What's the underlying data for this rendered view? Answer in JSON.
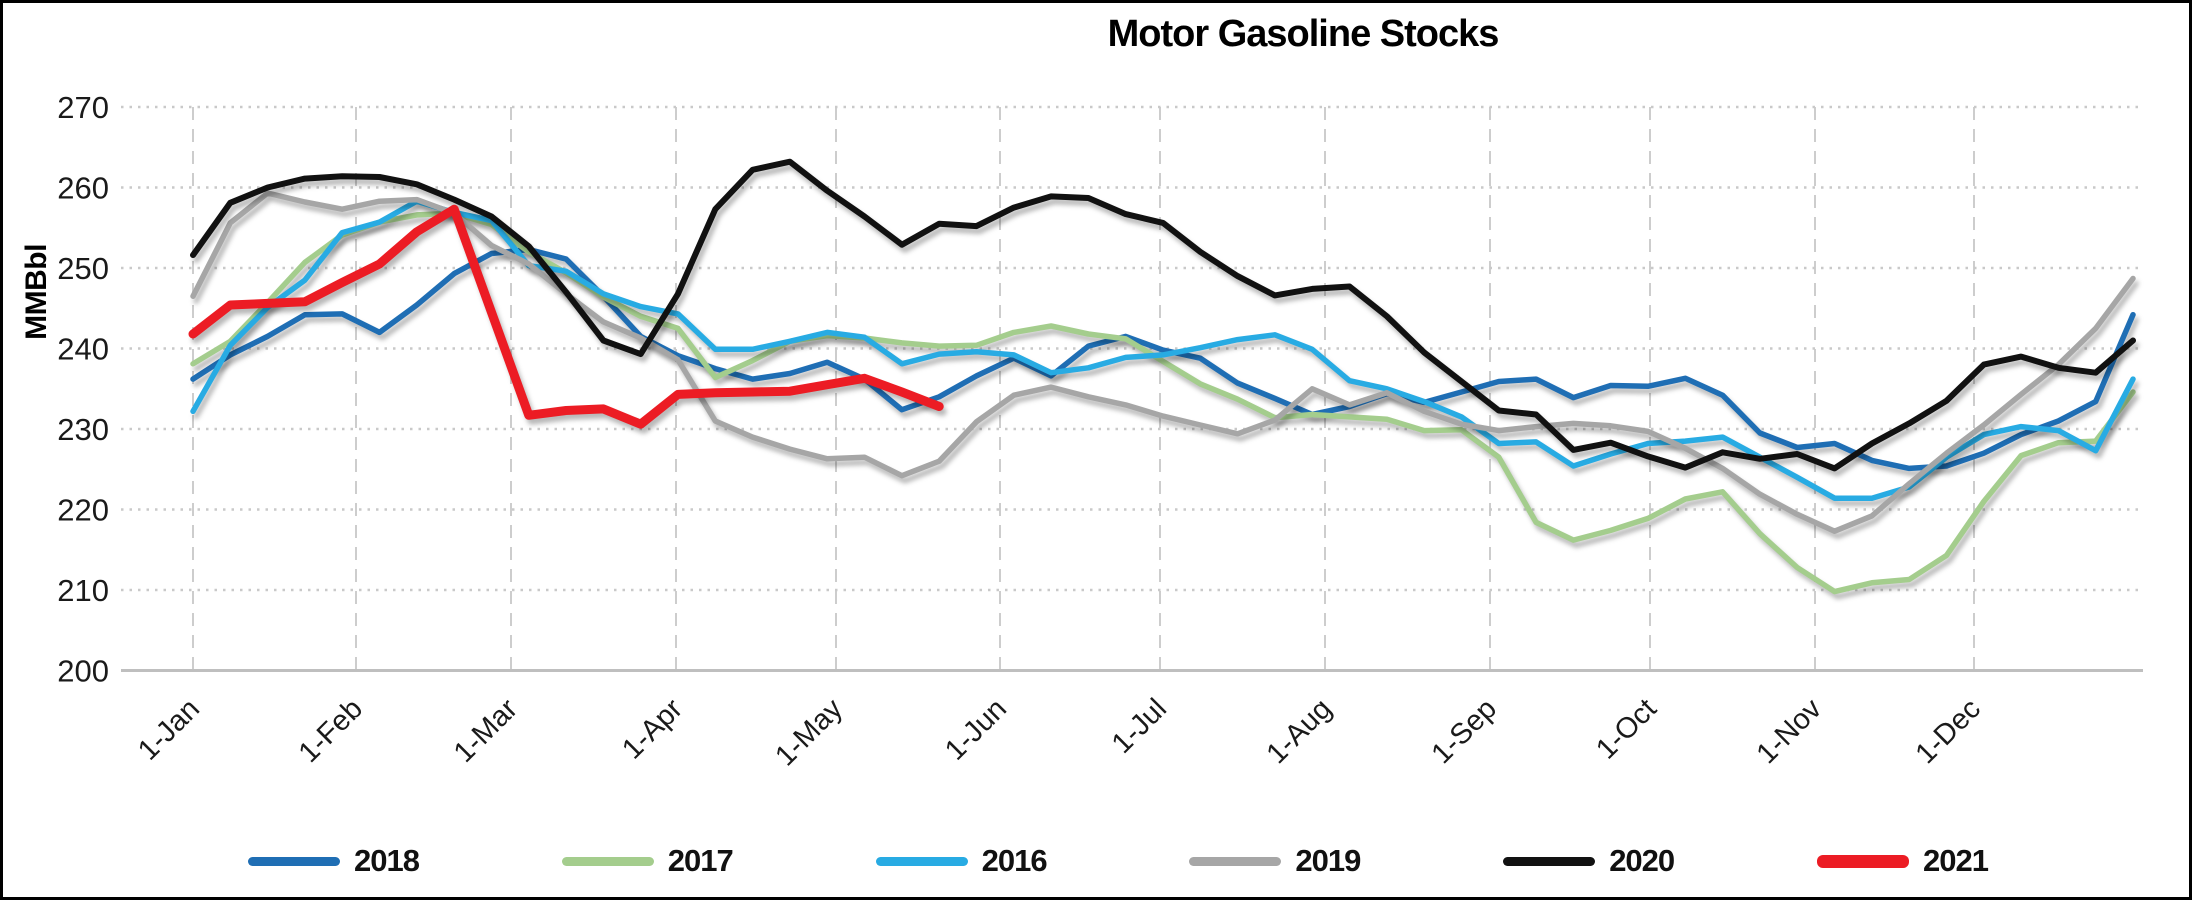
{
  "title": "Motor Gasoline Stocks",
  "y_axis": {
    "label": "MMBbl",
    "ticks": [
      270,
      260,
      250,
      240,
      230,
      220,
      210,
      200
    ]
  },
  "x_axis": {
    "tick_labels": [
      "1-Jan",
      "1-Feb",
      "1-Mar",
      "1-Apr",
      "1-May",
      "1-Jun",
      "1-Jul",
      "1-Aug",
      "1-Sep",
      "1-Oct",
      "1-Nov",
      "1-Dec"
    ]
  },
  "chart_data": {
    "type": "line",
    "title": "Motor Gasoline Stocks",
    "xlabel": "",
    "ylabel": "MMBbl",
    "ylim": [
      200,
      270
    ],
    "grid": true,
    "legend_position": "bottom",
    "x_tick_labels": [
      "1-Jan",
      "1-Feb",
      "1-Mar",
      "1-Apr",
      "1-May",
      "1-Jun",
      "1-Jul",
      "1-Aug",
      "1-Sep",
      "1-Oct",
      "1-Nov",
      "1-Dec"
    ],
    "x_note": "weekly data points, Jan 1 through Dec 31",
    "series": [
      {
        "name": "2018",
        "color": "#1F6EB4",
        "width": 5.5,
        "values": [
          236.2,
          239.2,
          241.5,
          244.2,
          244.3,
          242.0,
          245.4,
          249.3,
          251.8,
          252.3,
          251.1,
          246.5,
          241.5,
          239.1,
          237.5,
          236.2,
          236.9,
          238.3,
          236.2,
          232.4,
          234.0,
          236.6,
          238.8,
          236.6,
          240.3,
          241.5,
          239.8,
          238.8,
          235.7,
          233.8,
          231.8,
          232.8,
          234.4,
          233.3,
          234.6,
          235.9,
          236.2,
          233.9,
          235.4,
          235.3,
          236.3,
          234.2,
          229.5,
          227.7,
          228.2,
          226.1,
          225.1,
          225.4,
          227.0,
          229.3,
          231.0,
          233.4,
          244.2
        ]
      },
      {
        "name": "2017",
        "color": "#A4CD8D",
        "width": 5.5,
        "values": [
          238.1,
          240.9,
          245.7,
          250.7,
          254.1,
          255.7,
          256.6,
          256.8,
          255.4,
          252.0,
          249.4,
          246.4,
          244.0,
          242.5,
          236.4,
          238.5,
          240.9,
          241.6,
          241.3,
          240.7,
          240.3,
          240.4,
          242.0,
          242.8,
          241.8,
          241.2,
          238.4,
          235.6,
          233.7,
          231.4,
          231.8,
          231.5,
          231.2,
          229.8,
          229.9,
          226.5,
          218.4,
          216.2,
          217.4,
          218.9,
          221.3,
          222.2,
          217.0,
          212.8,
          209.8,
          210.9,
          211.3,
          214.3,
          221.0,
          226.7,
          228.3,
          228.5,
          234.6
        ]
      },
      {
        "name": "2016",
        "color": "#28ABE3",
        "width": 5.5,
        "values": [
          232.2,
          240.4,
          245.1,
          248.5,
          254.4,
          255.7,
          258.3,
          256.9,
          255.9,
          250.3,
          249.6,
          246.8,
          245.2,
          244.3,
          239.9,
          239.9,
          240.9,
          242.0,
          241.4,
          238.1,
          239.3,
          239.6,
          239.2,
          237.0,
          237.6,
          238.9,
          239.2,
          240.1,
          241.1,
          241.7,
          239.9,
          236.0,
          235.0,
          233.4,
          231.5,
          228.2,
          228.4,
          225.4,
          226.9,
          228.2,
          228.5,
          229.0,
          226.5,
          224.0,
          221.4,
          221.4,
          222.8,
          226.5,
          229.3,
          230.3,
          229.8,
          227.3,
          236.2
        ]
      },
      {
        "name": "2019",
        "color": "#A6A6A6",
        "width": 5.5,
        "values": [
          246.5,
          255.6,
          259.3,
          258.2,
          257.3,
          258.3,
          258.5,
          256.8,
          252.8,
          250.5,
          246.8,
          243.3,
          241.3,
          238.6,
          231.0,
          229.0,
          227.5,
          226.3,
          226.5,
          224.2,
          226.0,
          230.9,
          234.2,
          235.2,
          234.0,
          233.0,
          231.6,
          230.5,
          229.4,
          231.1,
          235.0,
          233.0,
          234.5,
          232.2,
          230.6,
          229.8,
          230.3,
          230.7,
          230.4,
          229.7,
          227.6,
          225.1,
          221.9,
          219.4,
          217.3,
          219.2,
          223.2,
          227.0,
          230.5,
          234.3,
          238.0,
          242.5,
          248.7
        ]
      },
      {
        "name": "2020",
        "color": "#111111",
        "width": 6,
        "values": [
          251.6,
          258.1,
          260.0,
          261.1,
          261.4,
          261.3,
          260.4,
          258.5,
          256.4,
          252.7,
          247.0,
          241.0,
          239.3,
          246.8,
          257.3,
          262.2,
          263.2,
          259.6,
          256.4,
          252.9,
          255.5,
          255.2,
          257.5,
          258.9,
          258.7,
          256.7,
          255.6,
          252.0,
          249.0,
          246.6,
          247.4,
          247.7,
          244.0,
          239.5,
          235.9,
          232.3,
          231.8,
          227.4,
          228.3,
          226.6,
          225.2,
          227.1,
          226.3,
          226.9,
          225.1,
          228.2,
          230.7,
          233.5,
          238.0,
          239.0,
          237.6,
          237.0,
          241.0
        ]
      },
      {
        "name": "2021",
        "color": "#EC1C24",
        "width": 9,
        "values": [
          241.8,
          245.4,
          245.6,
          245.8,
          248.2,
          250.5,
          254.5,
          257.3,
          244.5,
          231.7,
          232.3,
          232.5,
          230.6,
          234.3,
          234.5,
          234.6,
          234.7,
          235.5,
          236.3,
          234.6,
          232.8
        ]
      }
    ]
  }
}
